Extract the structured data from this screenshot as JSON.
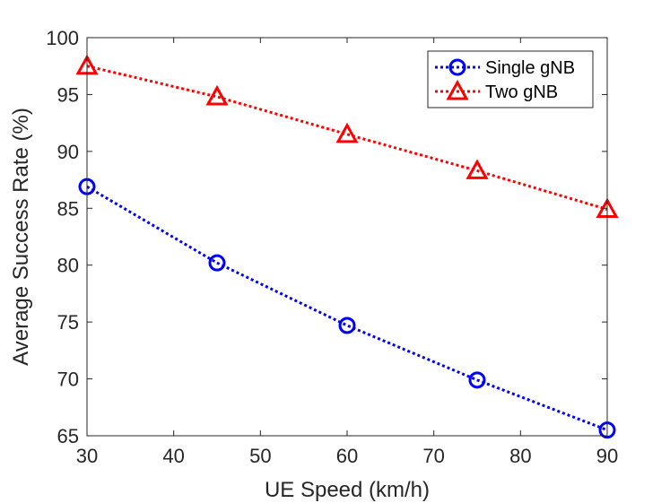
{
  "chart_data": {
    "type": "line",
    "title": "",
    "xlabel": "UE Speed (km/h)",
    "ylabel": "Average Success Rate (%)",
    "xlim": [
      30,
      90
    ],
    "ylim": [
      65,
      100
    ],
    "x": [
      30,
      45,
      60,
      75,
      90
    ],
    "xticks": [
      "30",
      "40",
      "50",
      "60",
      "70",
      "80",
      "90"
    ],
    "yticks": [
      "65",
      "70",
      "75",
      "80",
      "85",
      "90",
      "95",
      "100"
    ],
    "grid": false,
    "legend_position": "top-right",
    "series": [
      {
        "name": "Single gNB",
        "color": "#0000ff",
        "marker": "circle",
        "line_style": "dotted",
        "values": [
          86.9,
          80.2,
          74.7,
          69.9,
          65.5
        ]
      },
      {
        "name": "Two gNB",
        "color": "#ff0000",
        "marker": "triangle",
        "line_style": "dotted",
        "values": [
          97.5,
          94.8,
          91.5,
          88.3,
          84.9
        ]
      }
    ]
  }
}
